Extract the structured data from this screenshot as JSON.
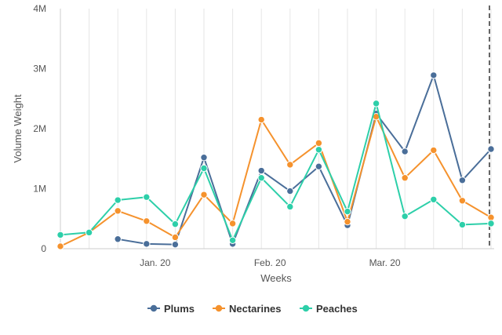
{
  "chart_data": {
    "type": "line",
    "title": "",
    "xlabel": "Weeks",
    "ylabel": "Volume Weight",
    "x_tick_labels": [
      "Jan. 20",
      "Feb. 20",
      "Mar. 20"
    ],
    "y_tick_labels": [
      "0",
      "1M",
      "2M",
      "3M",
      "4M"
    ],
    "y_ticks": [
      0,
      1000000,
      2000000,
      3000000,
      4000000
    ],
    "ylim": [
      0,
      4000000
    ],
    "week_count": 16,
    "x_tick_week_index": [
      3.3,
      7.3,
      11.3
    ],
    "grid": "vertical",
    "legend_position": "bottom-center",
    "series": [
      {
        "name": "Plums",
        "color": "#4A6E99",
        "values": [
          null,
          null,
          160000,
          80000,
          70000,
          1520000,
          80000,
          1300000,
          960000,
          1370000,
          390000,
          2250000,
          1620000,
          2890000,
          1140000,
          1660000
        ]
      },
      {
        "name": "Nectarines",
        "color": "#F5922D",
        "values": [
          40000,
          270000,
          630000,
          460000,
          190000,
          900000,
          420000,
          2150000,
          1400000,
          1760000,
          450000,
          2200000,
          1180000,
          1640000,
          800000,
          520000
        ]
      },
      {
        "name": "Peaches",
        "color": "#2DCFA9",
        "values": [
          230000,
          270000,
          810000,
          860000,
          410000,
          1340000,
          140000,
          1180000,
          700000,
          1650000,
          620000,
          2420000,
          540000,
          820000,
          400000,
          420000
        ]
      }
    ]
  }
}
